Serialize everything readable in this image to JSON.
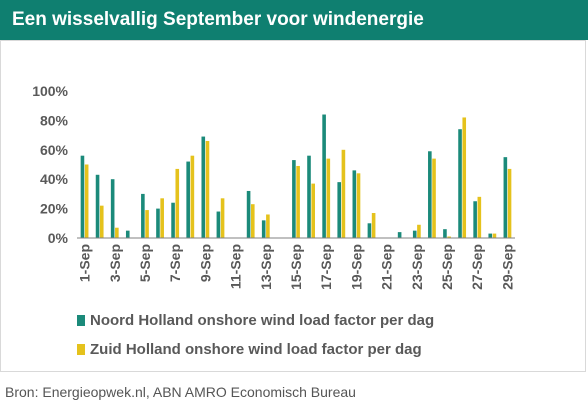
{
  "header": {
    "title": "Een wisselvallig September voor windenergie"
  },
  "source": "Bron: Energieopwek.nl,  ABN AMRO Economisch Bureau",
  "colors": {
    "header": "#0f7f70",
    "noord": "#1b8a7a",
    "zuid": "#e5c21c"
  },
  "chart_data": {
    "type": "bar",
    "categories": [
      "1-Sep",
      "2-Sep",
      "3-Sep",
      "4-Sep",
      "5-Sep",
      "6-Sep",
      "7-Sep",
      "8-Sep",
      "9-Sep",
      "10-Sep",
      "11-Sep",
      "12-Sep",
      "13-Sep",
      "14-Sep",
      "15-Sep",
      "16-Sep",
      "17-Sep",
      "18-Sep",
      "19-Sep",
      "20-Sep",
      "21-Sep",
      "22-Sep",
      "23-Sep",
      "24-Sep",
      "25-Sep",
      "26-Sep",
      "27-Sep",
      "28-Sep",
      "29-Sep"
    ],
    "tick_labels": [
      "1-Sep",
      "3-Sep",
      "5-Sep",
      "7-Sep",
      "9-Sep",
      "11-Sep",
      "13-Sep",
      "15-Sep",
      "17-Sep",
      "19-Sep",
      "21-Sep",
      "23-Sep",
      "25-Sep",
      "27-Sep",
      "29-Sep"
    ],
    "series": [
      {
        "name": "Noord Holland onshore wind load factor per dag",
        "values": [
          56,
          43,
          40,
          5,
          30,
          20,
          24,
          52,
          69,
          18,
          0,
          32,
          12,
          0,
          53,
          56,
          84,
          38,
          46,
          10,
          0,
          4,
          5,
          59,
          6,
          74,
          25,
          3,
          55
        ]
      },
      {
        "name": "Zuid Holland onshore wind load factor per dag",
        "values": [
          50,
          22,
          7,
          0,
          19,
          27,
          47,
          56,
          66,
          27,
          0,
          23,
          16,
          0,
          49,
          37,
          54,
          60,
          44,
          17,
          0,
          0,
          9,
          54,
          1,
          82,
          28,
          3,
          47
        ]
      }
    ],
    "yticks": [
      "0%",
      "20%",
      "40%",
      "60%",
      "80%",
      "100%"
    ],
    "ylim": [
      0,
      100
    ],
    "legend_position": "bottom",
    "grid": false
  }
}
